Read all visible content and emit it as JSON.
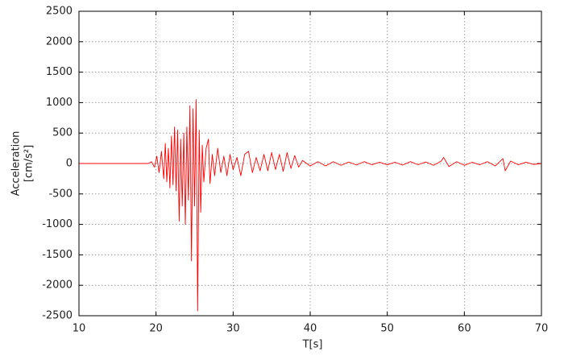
{
  "chart_data": {
    "type": "line",
    "xlabel": "T[s]",
    "ylabel": [
      "Acceleration",
      "[cm/s²]"
    ],
    "xlim": [
      10,
      70
    ],
    "xticks": [
      10,
      20,
      30,
      40,
      50,
      60,
      70
    ],
    "ylim": [
      -2500,
      2500
    ],
    "yticks": [
      -2500,
      -2000,
      -1500,
      -1000,
      -500,
      0,
      500,
      1000,
      1500,
      2000,
      2500
    ],
    "grid": true,
    "series": [
      {
        "color": "#ff0000",
        "x": [
          10,
          19,
          19.4,
          19.8,
          20.1,
          20.4,
          20.7,
          21.0,
          21.2,
          21.4,
          21.6,
          21.8,
          22.0,
          22.2,
          22.4,
          22.6,
          22.8,
          23.0,
          23.2,
          23.4,
          23.6,
          23.8,
          24.0,
          24.2,
          24.4,
          24.6,
          24.8,
          25.0,
          25.2,
          25.4,
          25.6,
          25.8,
          26.0,
          26.2,
          26.5,
          26.8,
          27.0,
          27.3,
          27.6,
          28.0,
          28.4,
          28.8,
          29.2,
          29.6,
          30.0,
          30.5,
          31.0,
          31.5,
          32.0,
          32.5,
          33.0,
          33.5,
          34.0,
          34.5,
          35.0,
          35.5,
          36.0,
          36.5,
          37.0,
          37.5,
          38.0,
          38.5,
          39.0,
          40,
          41,
          42,
          43,
          44,
          45,
          46,
          47,
          48,
          49,
          50,
          51,
          52,
          53,
          54,
          55,
          56,
          57,
          57.3,
          58,
          59,
          60,
          61,
          62,
          63,
          64,
          65,
          65.3,
          66,
          67,
          68,
          69,
          70
        ],
        "values": [
          0,
          0,
          30,
          -60,
          120,
          -150,
          200,
          -250,
          330,
          -300,
          250,
          -400,
          450,
          -350,
          600,
          -450,
          550,
          -950,
          400,
          -700,
          500,
          -1000,
          600,
          -600,
          950,
          -1600,
          900,
          -700,
          1050,
          -2420,
          550,
          -800,
          300,
          -300,
          250,
          400,
          -330,
          150,
          -200,
          250,
          -150,
          120,
          -200,
          150,
          -100,
          100,
          -200,
          150,
          200,
          -150,
          100,
          -120,
          150,
          -120,
          180,
          -100,
          150,
          -130,
          180,
          -80,
          130,
          -60,
          50,
          -40,
          30,
          -40,
          30,
          -30,
          25,
          -25,
          30,
          -20,
          20,
          -20,
          20,
          -25,
          30,
          -20,
          25,
          -30,
          40,
          100,
          -50,
          30,
          -30,
          20,
          -20,
          30,
          -40,
          80,
          -120,
          40,
          -20,
          20,
          -15,
          0
        ]
      }
    ]
  }
}
